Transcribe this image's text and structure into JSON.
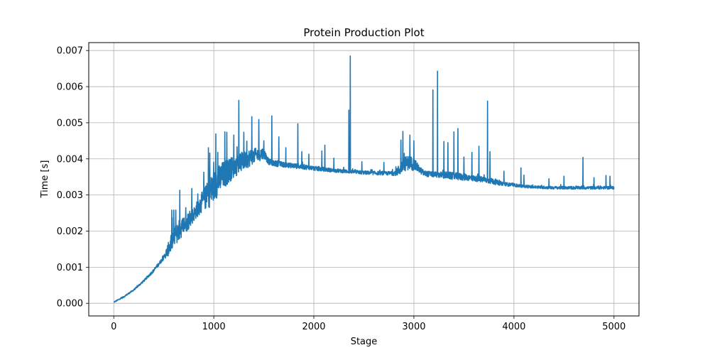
{
  "chart_data": {
    "type": "line",
    "title": "Protein Production Plot",
    "xlabel": "Stage",
    "ylabel": "Time [s]",
    "xlim": [
      -250,
      5250
    ],
    "ylim": [
      -0.00035,
      0.00722
    ],
    "xticks": [
      0,
      1000,
      2000,
      3000,
      4000,
      5000
    ],
    "xtick_labels": [
      "0",
      "1000",
      "2000",
      "3000",
      "4000",
      "5000"
    ],
    "yticks": [
      0.0,
      0.001,
      0.002,
      0.003,
      0.004,
      0.005,
      0.006,
      0.007
    ],
    "ytick_labels": [
      "0.000",
      "0.001",
      "0.002",
      "0.003",
      "0.004",
      "0.005",
      "0.006",
      "0.007"
    ],
    "grid": true,
    "series": [
      {
        "color": "#1f77b4",
        "x": [
          0,
          100,
          200,
          300,
          400,
          500,
          550,
          600,
          650,
          700,
          750,
          800,
          850,
          900,
          950,
          1000,
          1050,
          1100,
          1150,
          1200,
          1250,
          1300,
          1350,
          1400,
          1450,
          1500,
          1550,
          1600,
          1650,
          1700,
          1750,
          1800,
          1850,
          1900,
          1950,
          2000,
          2100,
          2200,
          2300,
          2400,
          2500,
          2600,
          2700,
          2800,
          2850,
          2900,
          2950,
          3000,
          3050,
          3100,
          3150,
          3200,
          3250,
          3300,
          3350,
          3400,
          3450,
          3500,
          3550,
          3600,
          3650,
          3700,
          3750,
          3800,
          3850,
          3900,
          3950,
          4000,
          4100,
          4200,
          4300,
          4400,
          4500,
          4600,
          4700,
          4800,
          4900,
          5000
        ],
        "y": [
          3e-05,
          0.00018,
          0.00037,
          0.00062,
          0.00091,
          0.00127,
          0.00152,
          0.00183,
          0.00201,
          0.00216,
          0.0023,
          0.00247,
          0.00268,
          0.00288,
          0.00303,
          0.00323,
          0.00342,
          0.00356,
          0.00368,
          0.00378,
          0.00387,
          0.00395,
          0.00402,
          0.00408,
          0.00413,
          0.00416,
          0.00392,
          0.00388,
          0.00386,
          0.00384,
          0.00382,
          0.00381,
          0.00379,
          0.00378,
          0.00376,
          0.00374,
          0.00371,
          0.00368,
          0.00366,
          0.00364,
          0.00362,
          0.00361,
          0.0036,
          0.0036,
          0.00368,
          0.00385,
          0.0039,
          0.00385,
          0.00372,
          0.0036,
          0.00358,
          0.00357,
          0.00356,
          0.00355,
          0.00354,
          0.00352,
          0.00351,
          0.0035,
          0.00348,
          0.00346,
          0.00344,
          0.00342,
          0.0034,
          0.00337,
          0.00333,
          0.00331,
          0.00329,
          0.00327,
          0.00324,
          0.00322,
          0.00321,
          0.0032,
          0.0032,
          0.0032,
          0.0032,
          0.0032,
          0.0032,
          0.0032
        ],
        "noise_amplitude": [
          1e-05,
          2e-05,
          2e-05,
          3e-05,
          4e-05,
          6e-05,
          0.0002,
          0.0003,
          0.0003,
          0.00025,
          0.00025,
          0.0002,
          0.00025,
          0.0003,
          0.0004,
          0.00045,
          0.0004,
          0.0004,
          0.00035,
          0.0003,
          0.0003,
          0.00025,
          0.00025,
          0.0002,
          0.0002,
          0.00015,
          8e-05,
          8e-05,
          8e-05,
          7e-05,
          7e-05,
          7e-05,
          7e-05,
          7e-05,
          6e-05,
          6e-05,
          6e-05,
          5e-05,
          5e-05,
          5e-05,
          5e-05,
          5e-05,
          5e-05,
          6e-05,
          0.00015,
          0.0002,
          0.0002,
          0.00018,
          0.0001,
          8e-05,
          8e-05,
          8e-05,
          8e-05,
          0.0001,
          0.0001,
          0.0001,
          0.0001,
          0.0001,
          8e-05,
          8e-05,
          8e-05,
          8e-05,
          8e-05,
          8e-05,
          6e-05,
          5e-05,
          5e-05,
          4e-05,
          4e-05,
          4e-05,
          4e-05,
          4e-05,
          4e-05,
          4e-05,
          4e-05,
          4e-05,
          4e-05,
          4e-05
        ],
        "spikes": [
          {
            "x": 580,
            "y": 0.00258
          },
          {
            "x": 600,
            "y": 0.00258
          },
          {
            "x": 620,
            "y": 0.00258
          },
          {
            "x": 660,
            "y": 0.00313
          },
          {
            "x": 720,
            "y": 0.00265
          },
          {
            "x": 780,
            "y": 0.00318
          },
          {
            "x": 840,
            "y": 0.00303
          },
          {
            "x": 900,
            "y": 0.00363
          },
          {
            "x": 945,
            "y": 0.00431
          },
          {
            "x": 960,
            "y": 0.00416
          },
          {
            "x": 1000,
            "y": 0.00391
          },
          {
            "x": 1020,
            "y": 0.00469
          },
          {
            "x": 1040,
            "y": 0.00418
          },
          {
            "x": 1110,
            "y": 0.00475
          },
          {
            "x": 1130,
            "y": 0.00474
          },
          {
            "x": 1200,
            "y": 0.00466
          },
          {
            "x": 1250,
            "y": 0.00562
          },
          {
            "x": 1300,
            "y": 0.00474
          },
          {
            "x": 1330,
            "y": 0.00449
          },
          {
            "x": 1380,
            "y": 0.00517
          },
          {
            "x": 1450,
            "y": 0.00509
          },
          {
            "x": 1500,
            "y": 0.0045
          },
          {
            "x": 1580,
            "y": 0.00519
          },
          {
            "x": 1650,
            "y": 0.00461
          },
          {
            "x": 1720,
            "y": 0.00431
          },
          {
            "x": 1840,
            "y": 0.00497
          },
          {
            "x": 1880,
            "y": 0.0042
          },
          {
            "x": 1950,
            "y": 0.00413
          },
          {
            "x": 2080,
            "y": 0.00422
          },
          {
            "x": 2110,
            "y": 0.00438
          },
          {
            "x": 2200,
            "y": 0.00402
          },
          {
            "x": 2350,
            "y": 0.00535
          },
          {
            "x": 2363,
            "y": 0.00685
          },
          {
            "x": 2480,
            "y": 0.00392
          },
          {
            "x": 2700,
            "y": 0.0039
          },
          {
            "x": 2870,
            "y": 0.00452
          },
          {
            "x": 2890,
            "y": 0.00476
          },
          {
            "x": 2960,
            "y": 0.00466
          },
          {
            "x": 3000,
            "y": 0.0045
          },
          {
            "x": 3190,
            "y": 0.00591
          },
          {
            "x": 3235,
            "y": 0.00643
          },
          {
            "x": 3300,
            "y": 0.00448
          },
          {
            "x": 3340,
            "y": 0.00445
          },
          {
            "x": 3400,
            "y": 0.00475
          },
          {
            "x": 3440,
            "y": 0.00484
          },
          {
            "x": 3500,
            "y": 0.00405
          },
          {
            "x": 3580,
            "y": 0.00418
          },
          {
            "x": 3650,
            "y": 0.00435
          },
          {
            "x": 3735,
            "y": 0.0056
          },
          {
            "x": 3760,
            "y": 0.0042
          },
          {
            "x": 3900,
            "y": 0.00366
          },
          {
            "x": 4070,
            "y": 0.00375
          },
          {
            "x": 4100,
            "y": 0.00355
          },
          {
            "x": 4350,
            "y": 0.00345
          },
          {
            "x": 4500,
            "y": 0.00352
          },
          {
            "x": 4690,
            "y": 0.00404
          },
          {
            "x": 4800,
            "y": 0.00348
          },
          {
            "x": 4920,
            "y": 0.00354
          },
          {
            "x": 4960,
            "y": 0.00352
          }
        ]
      }
    ]
  }
}
